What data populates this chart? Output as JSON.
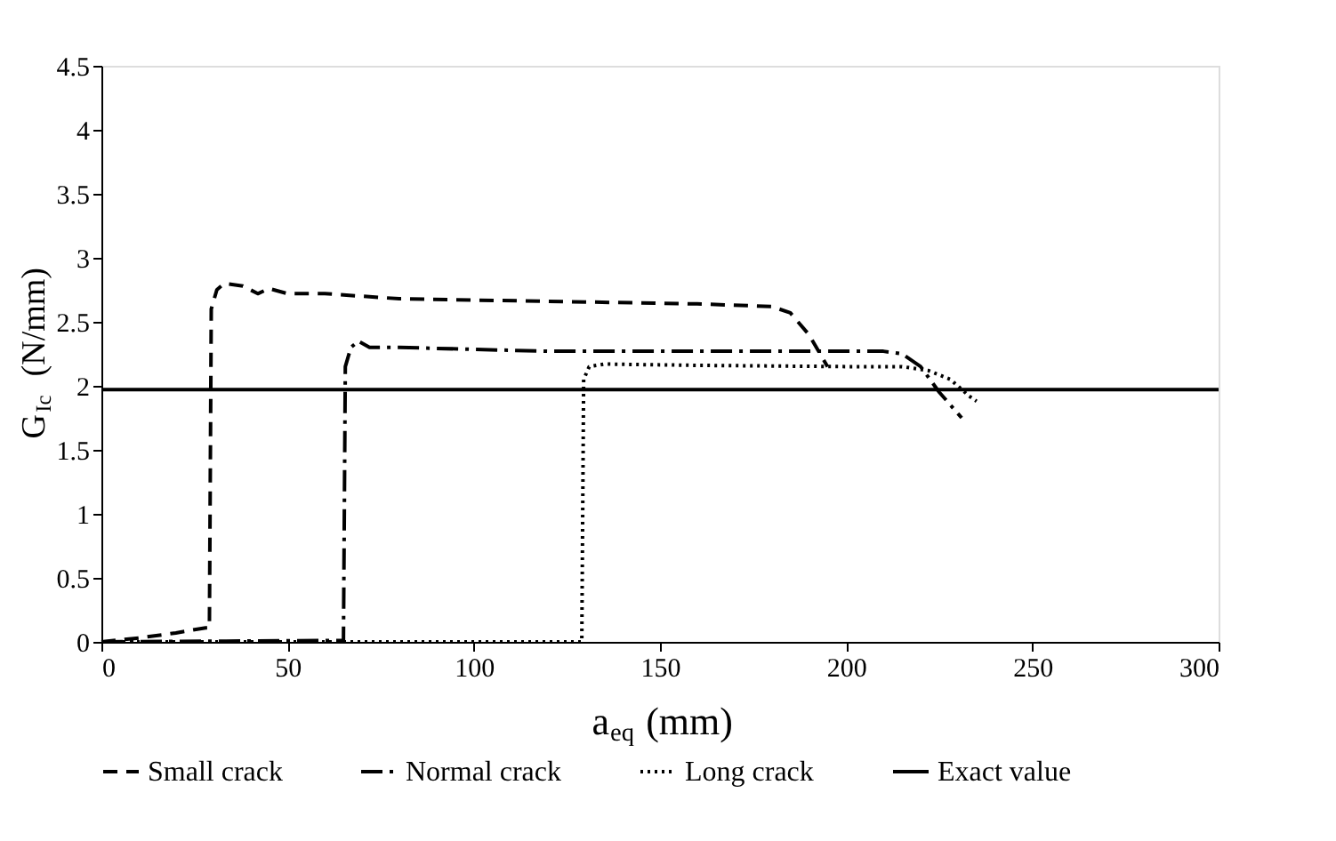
{
  "chart_data": {
    "type": "line",
    "xlabel": "a$_{eq}$ (mm)",
    "ylabel": "G$_{Ic}$ (N/mm)",
    "xlim": [
      0,
      300
    ],
    "xticks": [
      0,
      50,
      100,
      150,
      200,
      250,
      300
    ],
    "ylim": [
      0,
      4.5
    ],
    "yticks": [
      0,
      0.5,
      1,
      1.5,
      2,
      2.5,
      3,
      3.5,
      4,
      4.5
    ],
    "grid": false,
    "legend": "bottom",
    "marker": "none",
    "series": [
      {
        "name": "Small crack",
        "color": "#000000",
        "line_style": "dashed",
        "x": [
          0,
          10,
          20,
          28,
          29,
          29.5,
          31,
          33,
          38,
          42,
          45,
          50,
          60,
          80,
          120,
          160,
          180,
          185,
          190,
          195
        ],
        "values": [
          0,
          0.03,
          0.07,
          0.11,
          0.11,
          2.6,
          2.75,
          2.8,
          2.78,
          2.72,
          2.76,
          2.72,
          2.72,
          2.68,
          2.66,
          2.64,
          2.62,
          2.57,
          2.4,
          2.15
        ]
      },
      {
        "name": "Normal crack",
        "color": "#000000",
        "line_style": "dashdot",
        "x": [
          0,
          60,
          65,
          65.5,
          67,
          69,
          72,
          80,
          120,
          180,
          210,
          215,
          220,
          225,
          231
        ],
        "values": [
          0,
          0.01,
          0.01,
          2.15,
          2.3,
          2.35,
          2.3,
          2.3,
          2.27,
          2.27,
          2.27,
          2.25,
          2.15,
          1.95,
          1.75
        ]
      },
      {
        "name": "Long crack",
        "color": "#000000",
        "line_style": "dotted",
        "x": [
          0,
          129,
          129.5,
          131,
          135,
          160,
          200,
          215,
          222,
          228,
          233,
          235
        ],
        "values": [
          0,
          0,
          2.05,
          2.15,
          2.17,
          2.16,
          2.15,
          2.15,
          2.12,
          2.05,
          1.92,
          1.88
        ]
      },
      {
        "name": "Exact value",
        "color": "#000000",
        "line_style": "solid",
        "x": [
          0,
          300
        ],
        "values": [
          1.97,
          1.97
        ]
      }
    ]
  }
}
